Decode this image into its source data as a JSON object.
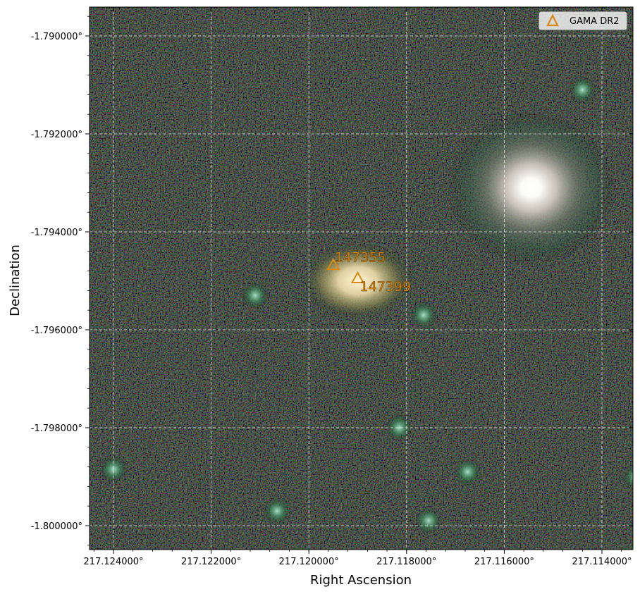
{
  "axes": {
    "xlabel": "Right Ascension",
    "ylabel": "Declination",
    "ra_ticks": [
      "217.124000°",
      "217.122000°",
      "217.120000°",
      "217.118000°",
      "217.116000°",
      "217.114000°"
    ],
    "dec_ticks": [
      "-1.790000°",
      "-1.792000°",
      "-1.794000°",
      "-1.796000°",
      "-1.798000°",
      "-1.800000°"
    ],
    "grid": true
  },
  "legend": {
    "label": "GAMA DR2",
    "placement": "top-right",
    "marker": "triangle-icon",
    "color": "#d98a0e"
  },
  "sources": [
    {
      "id": "147355",
      "ra": 217.1195,
      "dec": -1.79468
    },
    {
      "id": "147399",
      "ra": 217.119,
      "dec": -1.79495
    }
  ],
  "image_objects": [
    {
      "kind": "bright-star",
      "ra": 217.11545,
      "dec": -1.7931
    },
    {
      "kind": "galaxy",
      "ra": 217.119,
      "dec": -1.795
    },
    {
      "kind": "faint-source",
      "ra": 217.1211,
      "dec": -1.7953
    },
    {
      "kind": "faint-source",
      "ra": 217.11765,
      "dec": -1.7957
    },
    {
      "kind": "faint-source",
      "ra": 217.124,
      "dec": -1.79885
    },
    {
      "kind": "faint-source",
      "ra": 217.1133,
      "dec": -1.799
    },
    {
      "kind": "faint-source",
      "ra": 217.11815,
      "dec": -1.798
    },
    {
      "kind": "faint-source",
      "ra": 217.12065,
      "dec": -1.7997
    },
    {
      "kind": "faint-source",
      "ra": 217.11755,
      "dec": -1.7999
    },
    {
      "kind": "faint-source",
      "ra": 217.11675,
      "dec": -1.7989
    },
    {
      "kind": "faint-source",
      "ra": 217.1144,
      "dec": -1.7911
    }
  ],
  "colors": {
    "sky": "#050505",
    "grid": "#ffffff",
    "marker": "#d98a0e"
  }
}
